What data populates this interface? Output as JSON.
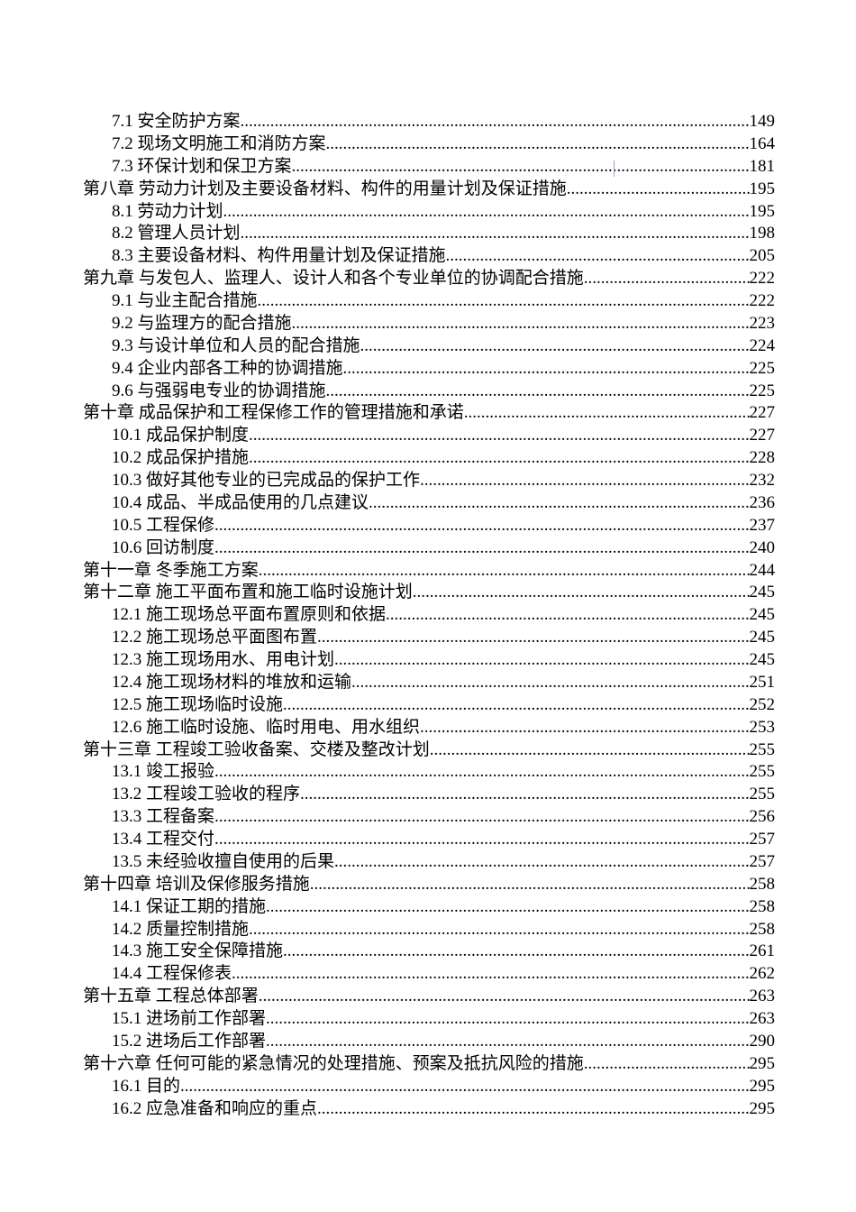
{
  "toc": [
    {
      "level": 2,
      "title": "7.1 安全防护方案",
      "page": "149"
    },
    {
      "level": 2,
      "title": "7.2 现场文明施工和消防方案",
      "page": "164"
    },
    {
      "level": 2,
      "title": "7.3 环保计划和保卫方案",
      "page": "181"
    },
    {
      "level": 1,
      "title": "第八章 劳动力计划及主要设备材料、构件的用量计划及保证措施",
      "page": "195"
    },
    {
      "level": 2,
      "title": "8.1 劳动力计划",
      "page": "195"
    },
    {
      "level": 2,
      "title": "8.2 管理人员计划",
      "page": "198"
    },
    {
      "level": 2,
      "title": "8.3 主要设备材料、构件用量计划及保证措施",
      "page": "205"
    },
    {
      "level": 1,
      "title": "第九章 与发包人、监理人、设计人和各个专业单位的协调配合措施",
      "page": "222"
    },
    {
      "level": 2,
      "title": "9.1 与业主配合措施",
      "page": "222"
    },
    {
      "level": 2,
      "title": "9.2 与监理方的配合措施",
      "page": "223"
    },
    {
      "level": 2,
      "title": "9.3 与设计单位和人员的配合措施",
      "page": "224"
    },
    {
      "level": 2,
      "title": "9.4 企业内部各工种的协调措施",
      "page": "225"
    },
    {
      "level": 2,
      "title": "9.6 与强弱电专业的协调措施",
      "page": "225"
    },
    {
      "level": 1,
      "title": "第十章 成品保护和工程保修工作的管理措施和承诺",
      "page": "227"
    },
    {
      "level": 2,
      "title": "10.1 成品保护制度",
      "page": "227"
    },
    {
      "level": 2,
      "title": "10.2 成品保护措施",
      "page": "228"
    },
    {
      "level": 2,
      "title": "10.3 做好其他专业的已完成品的保护工作",
      "page": "232"
    },
    {
      "level": 2,
      "title": "10.4 成品、半成品使用的几点建议",
      "page": "236"
    },
    {
      "level": 2,
      "title": "10.5 工程保修",
      "page": "237"
    },
    {
      "level": 2,
      "title": "10.6 回访制度",
      "page": "240"
    },
    {
      "level": 1,
      "title": "第十一章 冬季施工方案",
      "page": "244"
    },
    {
      "level": 1,
      "title": "第十二章 施工平面布置和施工临时设施计划",
      "page": "245"
    },
    {
      "level": 2,
      "title": "12.1 施工现场总平面布置原则和依据",
      "page": "245"
    },
    {
      "level": 2,
      "title": "12.2 施工现场总平面图布置",
      "page": "245"
    },
    {
      "level": 2,
      "title": "12.3 施工现场用水、用电计划",
      "page": "245"
    },
    {
      "level": 2,
      "title": "12.4 施工现场材料的堆放和运输",
      "page": "251"
    },
    {
      "level": 2,
      "title": "12.5 施工现场临时设施",
      "page": "252"
    },
    {
      "level": 2,
      "title": "12.6 施工临时设施、临时用电、用水组织",
      "page": "253"
    },
    {
      "level": 1,
      "title": "第十三章 工程竣工验收备案、交楼及整改计划",
      "page": "255"
    },
    {
      "level": 2,
      "title": "13.1 竣工报验",
      "page": "255"
    },
    {
      "level": 2,
      "title": "13.2 工程竣工验收的程序",
      "page": "255"
    },
    {
      "level": 2,
      "title": "13.3 工程备案",
      "page": "256"
    },
    {
      "level": 2,
      "title": "13.4 工程交付",
      "page": "257"
    },
    {
      "level": 2,
      "title": "13.5 未经验收擅自使用的后果",
      "page": "257"
    },
    {
      "level": 1,
      "title": "第十四章 培训及保修服务措施",
      "page": "258"
    },
    {
      "level": 2,
      "title": "14.1 保证工期的措施",
      "page": "258"
    },
    {
      "level": 2,
      "title": "14.2 质量控制措施",
      "page": "258"
    },
    {
      "level": 2,
      "title": "14.3 施工安全保障措施",
      "page": "261"
    },
    {
      "level": 2,
      "title": "14.4 工程保修表",
      "page": "262"
    },
    {
      "level": 1,
      "title": "第十五章 工程总体部署",
      "page": "263"
    },
    {
      "level": 2,
      "title": "15.1 进场前工作部署",
      "page": "263"
    },
    {
      "level": 2,
      "title": "15.2 进场后工作部署",
      "page": "290"
    },
    {
      "level": 1,
      "title": "第十六章 任何可能的紧急情况的处理措施、预案及抵抗风险的措施",
      "page": "295"
    },
    {
      "level": 2,
      "title": "16.1 目的",
      "page": "295"
    },
    {
      "level": 2,
      "title": "16.2 应急准备和响应的重点",
      "page": "295"
    }
  ]
}
